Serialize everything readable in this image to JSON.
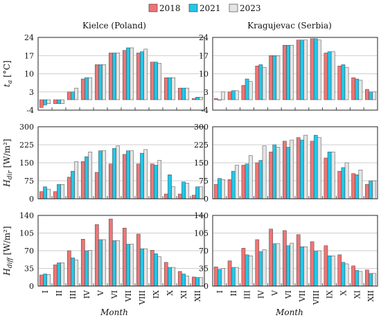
{
  "legend": [
    {
      "label": "2018",
      "color": "#f07474"
    },
    {
      "label": "2021",
      "color": "#20c8ea"
    },
    {
      "label": "2023",
      "color": "#e4e4e4"
    }
  ],
  "titles": [
    "Kielce (Poland)",
    "Kragujevac (Serbia)"
  ],
  "x_axis_label": "Month",
  "chart_data": [
    {
      "type": "bar",
      "title": "Kielce (Poland)",
      "ylabel": "t_a [°C]",
      "ylim": [
        -4,
        24
      ],
      "yticks": [
        -4,
        3,
        10,
        17,
        24
      ],
      "grid": true,
      "categories": [
        "I",
        "II",
        "III",
        "IV",
        "V",
        "VI",
        "VII",
        "VIII",
        "IX",
        "X",
        "XI",
        "XII"
      ],
      "series": [
        {
          "name": "2018",
          "values": [
            -3.0,
            -1.5,
            3.0,
            8.0,
            13.5,
            18.0,
            19.0,
            18.0,
            14.5,
            8.5,
            4.5,
            0.5
          ]
        },
        {
          "name": "2021",
          "values": [
            -2.0,
            -1.5,
            3.0,
            8.5,
            13.5,
            18.0,
            20.0,
            18.5,
            14.5,
            8.5,
            4.5,
            1.0
          ]
        },
        {
          "name": "2023",
          "values": [
            -1.5,
            -1.5,
            4.5,
            8.5,
            13.5,
            18.0,
            20.0,
            19.5,
            14.0,
            8.5,
            4.5,
            1.0
          ]
        }
      ]
    },
    {
      "type": "bar",
      "title": "Kragujevac (Serbia)",
      "ylabel": "t_a [°C]",
      "ylim": [
        -4,
        24
      ],
      "yticks": [
        -4,
        3,
        10,
        17,
        24
      ],
      "grid": true,
      "categories": [
        "I",
        "II",
        "III",
        "IV",
        "V",
        "VI",
        "VII",
        "VIII",
        "IX",
        "X",
        "XI",
        "XII"
      ],
      "series": [
        {
          "name": "2018",
          "values": [
            0.5,
            3.0,
            5.5,
            13.0,
            17.0,
            21.0,
            23.0,
            23.5,
            18.0,
            13.0,
            8.5,
            4.0
          ]
        },
        {
          "name": "2021",
          "values": [
            0.0,
            3.5,
            8.0,
            13.5,
            17.0,
            21.0,
            23.0,
            23.5,
            18.5,
            13.5,
            8.0,
            3.0
          ]
        },
        {
          "name": "2023",
          "values": [
            3.0,
            3.5,
            7.0,
            12.5,
            17.0,
            21.0,
            23.0,
            23.0,
            18.5,
            12.5,
            7.5,
            3.0
          ]
        }
      ]
    },
    {
      "type": "bar",
      "ylabel": "H_dir [W/m²]",
      "ylim": [
        0,
        300
      ],
      "yticks": [
        0,
        75,
        150,
        225,
        300
      ],
      "grid": true,
      "categories": [
        "I",
        "II",
        "III",
        "IV",
        "V",
        "VI",
        "VII",
        "VIII",
        "IX",
        "X",
        "XI",
        "XII"
      ],
      "series": [
        {
          "name": "2018",
          "values": [
            30,
            30,
            90,
            155,
            110,
            145,
            185,
            145,
            145,
            20,
            20,
            15
          ]
        },
        {
          "name": "2021",
          "values": [
            50,
            60,
            115,
            175,
            200,
            210,
            200,
            190,
            140,
            100,
            70,
            50
          ]
        },
        {
          "name": "2023",
          "values": [
            40,
            60,
            155,
            195,
            200,
            220,
            200,
            205,
            160,
            50,
            65,
            50
          ]
        }
      ]
    },
    {
      "type": "bar",
      "ylabel": "H_dir [W/m²]",
      "ylim": [
        0,
        300
      ],
      "yticks": [
        0,
        75,
        150,
        225,
        300
      ],
      "grid": true,
      "categories": [
        "I",
        "II",
        "III",
        "IV",
        "V",
        "VI",
        "VII",
        "VIII",
        "IX",
        "X",
        "XI",
        "XII"
      ],
      "series": [
        {
          "name": "2018",
          "values": [
            60,
            80,
            140,
            150,
            195,
            240,
            255,
            240,
            170,
            115,
            105,
            60
          ]
        },
        {
          "name": "2021",
          "values": [
            85,
            115,
            145,
            160,
            225,
            215,
            245,
            265,
            195,
            130,
            100,
            75
          ]
        },
        {
          "name": "2023",
          "values": [
            80,
            140,
            180,
            220,
            215,
            245,
            265,
            255,
            195,
            150,
            120,
            75
          ]
        }
      ]
    },
    {
      "type": "bar",
      "ylabel": "H_diff [W/m²]",
      "ylim": [
        0,
        140
      ],
      "yticks": [
        0,
        35,
        70,
        105,
        140
      ],
      "grid": true,
      "categories": [
        "I",
        "II",
        "III",
        "IV",
        "V",
        "VI",
        "VII",
        "VIII",
        "IX",
        "X",
        "XI",
        "XII"
      ],
      "series": [
        {
          "name": "2018",
          "values": [
            22,
            42,
            70,
            93,
            122,
            133,
            115,
            103,
            71,
            47,
            29,
            18
          ]
        },
        {
          "name": "2021",
          "values": [
            24,
            46,
            56,
            70,
            92,
            90,
            83,
            74,
            64,
            37,
            24,
            17
          ]
        },
        {
          "name": "2023",
          "values": [
            23,
            46,
            52,
            71,
            92,
            90,
            83,
            74,
            58,
            37,
            20,
            17
          ]
        }
      ]
    },
    {
      "type": "bar",
      "ylabel": "H_diff [W/m²]",
      "ylim": [
        0,
        140
      ],
      "yticks": [
        0,
        35,
        70,
        105,
        140
      ],
      "grid": true,
      "categories": [
        "I",
        "II",
        "III",
        "IV",
        "V",
        "VI",
        "VII",
        "VIII",
        "IX",
        "X",
        "XI",
        "XII"
      ],
      "series": [
        {
          "name": "2018",
          "values": [
            38,
            50,
            75,
            92,
            113,
            110,
            102,
            88,
            80,
            62,
            40,
            32
          ]
        },
        {
          "name": "2021",
          "values": [
            33,
            37,
            62,
            68,
            84,
            80,
            78,
            69,
            60,
            47,
            31,
            25
          ]
        },
        {
          "name": "2023",
          "values": [
            35,
            37,
            60,
            72,
            84,
            85,
            78,
            70,
            60,
            44,
            29,
            25
          ]
        }
      ]
    }
  ]
}
